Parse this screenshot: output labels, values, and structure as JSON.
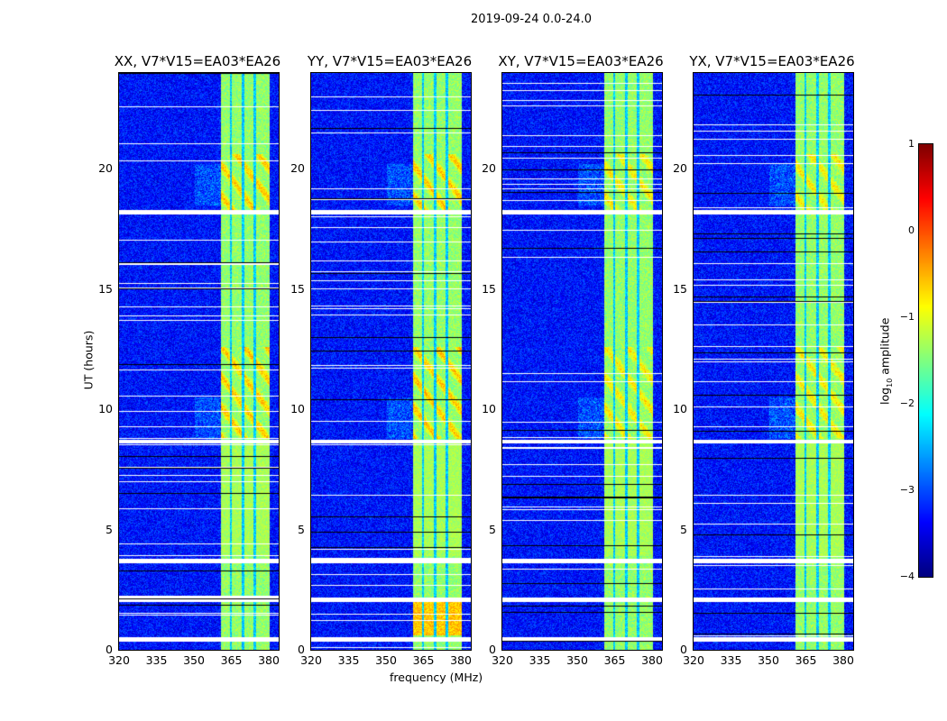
{
  "chart_data": {
    "type": "heatmap",
    "title": "2019-09-24 0.0-24.0",
    "xlabel": "frequency (MHz)",
    "ylabel": "UT (hours)",
    "xlim": [
      320,
      384
    ],
    "ylim": [
      0,
      24
    ],
    "xticks": [
      "320",
      "335",
      "350",
      "365",
      "380"
    ],
    "yticks": [
      "0",
      "5",
      "10",
      "15",
      "20"
    ],
    "panels": [
      {
        "title": "XX, V7*V15=EA03*EA26"
      },
      {
        "title": "YY, V7*V15=EA03*EA26"
      },
      {
        "title": "XY, V7*V15=EA03*EA26"
      },
      {
        "title": "YX, V7*V15=EA03*EA26"
      }
    ],
    "rfi_band_mhz": [
      360.5,
      380
    ],
    "flagged_gaps_hours": [
      [
        0.35,
        0.55
      ],
      [
        2.0,
        2.2
      ],
      [
        3.6,
        3.8
      ],
      [
        8.6,
        8.75
      ],
      [
        18.1,
        18.3
      ]
    ],
    "colorbar": {
      "label": "log10 amplitude",
      "label_main": "log",
      "label_sub": "10",
      "label_rest": " amplitude",
      "range": [
        -4,
        1
      ],
      "ticks": [
        "1",
        "0",
        "−1",
        "−2",
        "−3",
        "−4"
      ],
      "colormap": "jet"
    }
  }
}
